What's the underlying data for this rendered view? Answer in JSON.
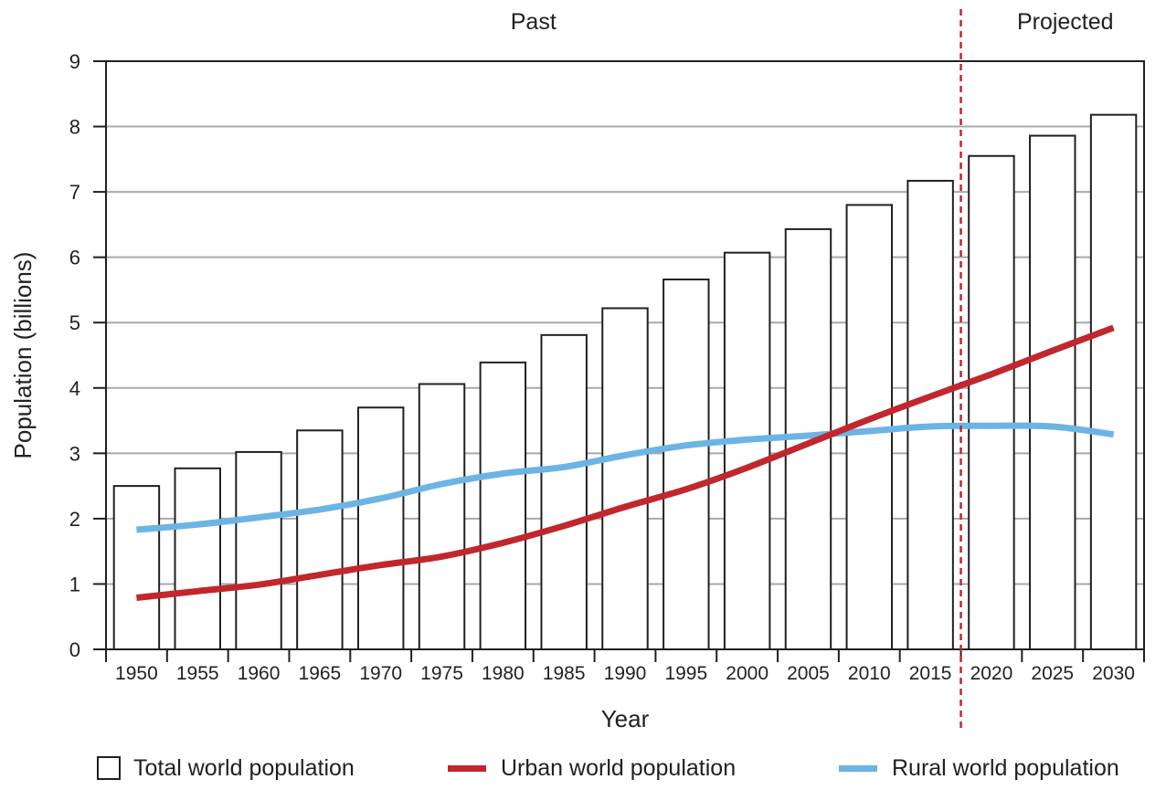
{
  "chart_data": {
    "type": "bar",
    "ylabel": "Population (billions)",
    "xlabel": "Year",
    "ylim": [
      0,
      9
    ],
    "yticks": [
      "0",
      "1",
      "2",
      "3",
      "4",
      "5",
      "6",
      "7",
      "8",
      "9"
    ],
    "grid": true,
    "legend_placement": "bottom",
    "categories": [
      "1950",
      "1955",
      "1960",
      "1965",
      "1970",
      "1975",
      "1980",
      "1985",
      "1990",
      "1995",
      "2000",
      "2005",
      "2010",
      "2015",
      "2020",
      "2025",
      "2030"
    ],
    "series": [
      {
        "name": "Total world population",
        "type": "bar",
        "color": "#ffffff",
        "values": [
          2.5,
          2.77,
          3.02,
          3.35,
          3.7,
          4.06,
          4.39,
          4.81,
          5.22,
          5.66,
          6.07,
          6.43,
          6.8,
          7.17,
          7.55,
          7.86,
          8.18
        ]
      },
      {
        "name": "Urban world population",
        "type": "line",
        "color": "#c1272d",
        "values": [
          0.79,
          0.89,
          0.99,
          1.14,
          1.29,
          1.42,
          1.63,
          1.89,
          2.18,
          2.45,
          2.78,
          3.15,
          3.52,
          3.87,
          4.21,
          4.57,
          4.92
        ]
      },
      {
        "name": "Rural world population",
        "type": "line",
        "color": "#6cb4e4",
        "values": [
          1.83,
          1.91,
          2.02,
          2.14,
          2.31,
          2.53,
          2.69,
          2.79,
          2.97,
          3.12,
          3.21,
          3.27,
          3.34,
          3.41,
          3.42,
          3.41,
          3.29
        ]
      }
    ],
    "regions": {
      "past_label": "Past",
      "projected_label": "Projected",
      "divider_between": [
        "2015",
        "2020"
      ]
    },
    "colors": {
      "axis": "#231f20",
      "grid": "#a7a9ac",
      "divider": "#c1272d"
    }
  }
}
